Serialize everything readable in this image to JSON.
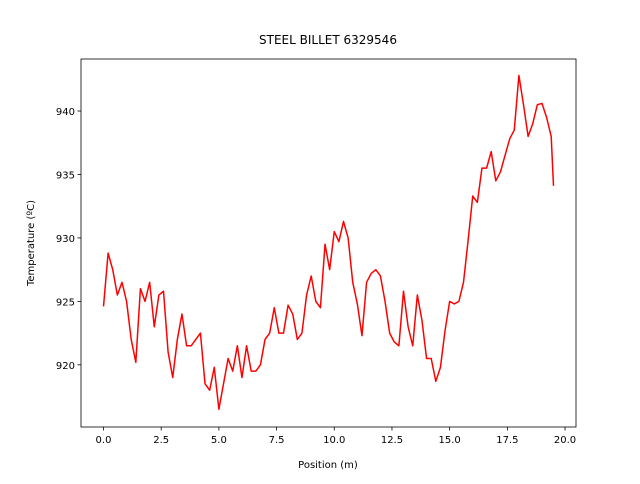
{
  "chart_data": {
    "type": "line",
    "title": "STEEL BILLET 6329546",
    "xlabel": "Position (m)",
    "ylabel": "Temperature (ºC)",
    "x": [
      0,
      0.2,
      0.4,
      0.6,
      0.8,
      1.0,
      1.2,
      1.4,
      1.6,
      1.8,
      2.0,
      2.2,
      2.4,
      2.6,
      2.8,
      3.0,
      3.2,
      3.4,
      3.6,
      3.8,
      4.0,
      4.2,
      4.4,
      4.6,
      4.8,
      5.0,
      5.2,
      5.4,
      5.6,
      5.8,
      6.0,
      6.2,
      6.4,
      6.6,
      6.8,
      7.0,
      7.2,
      7.4,
      7.6,
      7.8,
      8.0,
      8.2,
      8.4,
      8.6,
      8.8,
      9.0,
      9.2,
      9.4,
      9.6,
      9.8,
      10.0,
      10.2,
      10.4,
      10.6,
      10.8,
      11.0,
      11.2,
      11.4,
      11.6,
      11.8,
      12.0,
      12.2,
      12.4,
      12.6,
      12.8,
      13.0,
      13.2,
      13.4,
      13.6,
      13.8,
      14.0,
      14.2,
      14.4,
      14.6,
      14.8,
      15.0,
      15.2,
      15.4,
      15.6,
      15.8,
      16.0,
      16.2,
      16.4,
      16.6,
      16.8,
      17.0,
      17.2,
      17.4,
      17.6,
      17.8,
      18.0,
      18.2,
      18.4,
      18.6,
      18.8,
      19.0,
      19.2,
      19.4,
      19.5
    ],
    "series": [
      {
        "color": "#ff0000",
        "values": [
          924.6,
          928.8,
          927.5,
          925.5,
          926.5,
          925,
          922,
          920.2,
          926,
          925,
          926.5,
          923,
          925.5,
          925.8,
          921,
          919,
          922,
          924,
          921.5,
          921.5,
          922,
          922.5,
          918.5,
          918,
          919.8,
          916.5,
          918.5,
          920.5,
          919.5,
          921.5,
          919,
          921.5,
          919.5,
          919.5,
          920,
          922,
          922.5,
          924.5,
          922.5,
          922.5,
          924.7,
          924,
          922,
          922.5,
          925.5,
          927,
          925,
          924.5,
          929.5,
          927.5,
          930.5,
          929.7,
          931.3,
          930,
          926.5,
          924.8,
          922.3,
          926.5,
          927.2,
          927.5,
          927,
          925,
          922.5,
          921.8,
          921.5,
          925.8,
          923,
          921.5,
          925.5,
          923.5,
          920.5,
          920.5,
          918.7,
          919.8,
          922.7,
          925,
          924.8,
          925,
          926.5,
          929.8,
          933.3,
          932.8,
          935.5,
          935.5,
          936.8,
          934.5,
          935.2,
          936.5,
          937.8,
          938.5,
          942.8,
          940.5,
          938,
          939,
          940.5,
          940.6,
          939.5,
          938,
          934.1
        ]
      }
    ],
    "xlim": [
      -0.975,
      20.475
    ],
    "ylim": [
      915.1,
      944.1
    ],
    "xticks": [
      {
        "value": 0,
        "label": "0.0"
      },
      {
        "value": 2.5,
        "label": "2.5"
      },
      {
        "value": 5,
        "label": "5.0"
      },
      {
        "value": 7.5,
        "label": "7.5"
      },
      {
        "value": 10,
        "label": "10.0"
      },
      {
        "value": 12.5,
        "label": "12.5"
      },
      {
        "value": 15,
        "label": "15.0"
      },
      {
        "value": 17.5,
        "label": "17.5"
      },
      {
        "value": 20,
        "label": "20.0"
      }
    ],
    "yticks": [
      920,
      925,
      930,
      935,
      940
    ],
    "grid": false
  }
}
